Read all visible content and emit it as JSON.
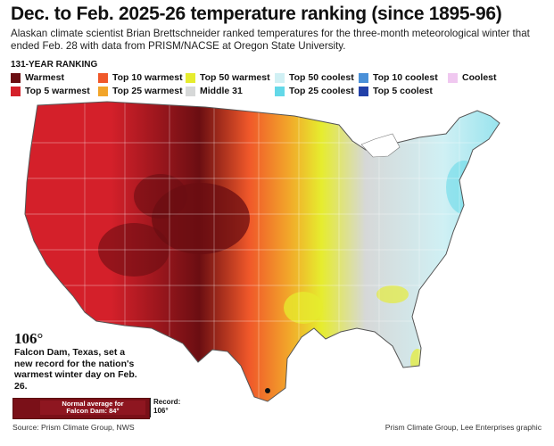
{
  "header": {
    "title": "Dec. to Feb. 2025-26 temperature ranking (since 1895-96)",
    "subtitle": "Alaskan climate scientist Brian Brettschneider ranked temperatures for the three-month meteorological winter that ended Feb. 28 with data from PRISM/NACSE at Oregon State University."
  },
  "legend": {
    "title": "131-YEAR RANKING",
    "items": [
      {
        "label": "Warmest",
        "color": "#6b0e12"
      },
      {
        "label": "Top 5 warmest",
        "color": "#d4202a"
      },
      {
        "label": "Top 10 warmest",
        "color": "#f0582a"
      },
      {
        "label": "Top 25 warmest",
        "color": "#f2a52a"
      },
      {
        "label": "Top 50 warmest",
        "color": "#e6ec2e"
      },
      {
        "label": "Middle 31",
        "color": "#d6d8d8"
      },
      {
        "label": "Top 50 coolest",
        "color": "#d0f0f4"
      },
      {
        "label": "Top 25 coolest",
        "color": "#63d8e8"
      },
      {
        "label": "Top 10 coolest",
        "color": "#4a90d8"
      },
      {
        "label": "Top 5 coolest",
        "color": "#2140a8"
      },
      {
        "label": "Coolest",
        "color": "#f0c8f0"
      }
    ]
  },
  "callout": {
    "number": "106°",
    "text": "Falcon Dam, Texas, set a new record for the nation's warmest winter day on Feb. 26.",
    "normal_line1": "Normal average for",
    "normal_line2": "Falcon Dam: 84°",
    "record_line1": "Record:",
    "record_line2": "106°"
  },
  "footer": {
    "source_left": "Source: Prism Climate Group, NWS",
    "source_right": "Prism Climate Group, Lee Enterprises graphic"
  }
}
